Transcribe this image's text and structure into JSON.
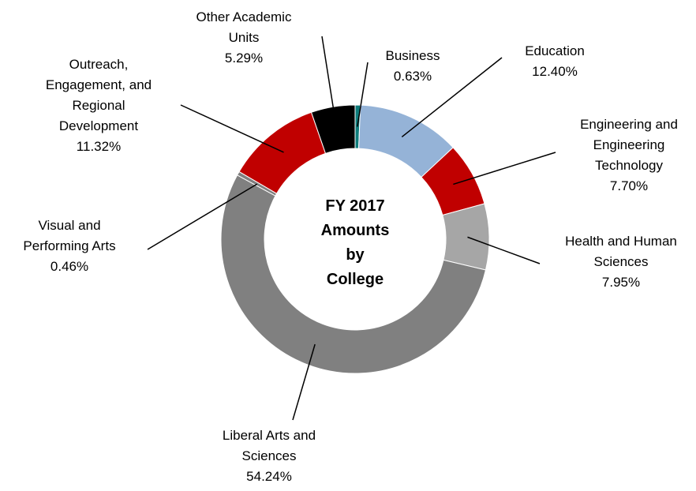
{
  "chart_data": {
    "type": "pie",
    "variant": "donut",
    "center_label": [
      "FY 2017",
      "Amounts",
      "by",
      "College"
    ],
    "legend": "none",
    "slices": [
      {
        "name": "Business",
        "value": 0.63,
        "value_label": "0.63%",
        "label_lines": [
          "Business"
        ],
        "color": "#0E7C7B"
      },
      {
        "name": "Education",
        "value": 12.4,
        "value_label": "12.40%",
        "label_lines": [
          "Education"
        ],
        "color": "#95B3D7"
      },
      {
        "name": "Engineering and Engineering Technology",
        "value": 7.7,
        "value_label": "7.70%",
        "label_lines": [
          "Engineering and",
          "Engineering",
          "Technology"
        ],
        "color": "#C00000"
      },
      {
        "name": "Health and Human Sciences",
        "value": 7.95,
        "value_label": "7.95%",
        "label_lines": [
          "Health and Human",
          "Sciences"
        ],
        "color": "#A6A6A6"
      },
      {
        "name": "Liberal Arts and Sciences",
        "value": 54.24,
        "value_label": "54.24%",
        "label_lines": [
          "Liberal Arts and",
          "Sciences"
        ],
        "color": "#808080"
      },
      {
        "name": "Visual and Performing Arts",
        "value": 0.46,
        "value_label": "0.46%",
        "label_lines": [
          "Visual and",
          "Performing Arts"
        ],
        "color": "#7F7F7F"
      },
      {
        "name": "Outreach, Engagement, and Regional Development",
        "value": 11.32,
        "value_label": "11.32%",
        "label_lines": [
          "Outreach,",
          "Engagement, and",
          "Regional",
          "Development"
        ],
        "color": "#C00000"
      },
      {
        "name": "Other Academic Units",
        "value": 5.29,
        "value_label": "5.29%",
        "label_lines": [
          "Other Academic",
          "Units"
        ],
        "color": "#000000"
      }
    ]
  }
}
